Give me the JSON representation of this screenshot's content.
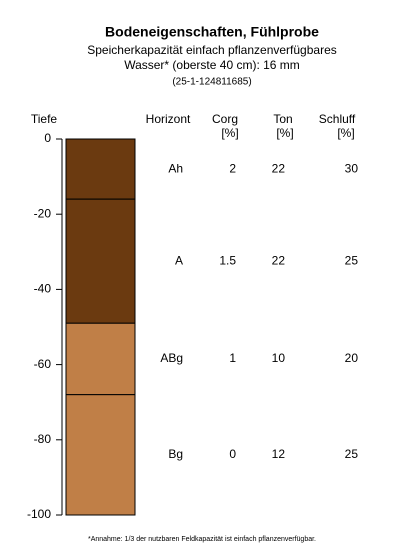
{
  "chart_data": {
    "type": "soil-profile",
    "title": "Bodeneigenschaften, Fühlprobe",
    "subtitle": [
      "Speicherkapazität einfach pflanzenverfügbares",
      "Wasser* (oberste 40 cm): 16 mm",
      "(25-1-124811685)"
    ],
    "y_label": "Tiefe",
    "horizon_header": "Horizont",
    "columns": [
      {
        "name": "Corg",
        "unit": "[%]"
      },
      {
        "name": "Ton",
        "unit": "[%]"
      },
      {
        "name": "Schluff",
        "unit": "[%]"
      }
    ],
    "ylim": [
      -100,
      0
    ],
    "yticks": [
      0,
      -20,
      -40,
      -60,
      -80,
      -100
    ],
    "horizons": [
      {
        "name": "Ah",
        "top": 0,
        "bottom": -16,
        "color": "#6b3a10",
        "values": [
          2,
          22,
          30
        ]
      },
      {
        "name": "A",
        "top": -16,
        "bottom": -49,
        "color": "#6b3a10",
        "values": [
          1.5,
          22,
          25
        ]
      },
      {
        "name": "ABg",
        "top": -49,
        "bottom": -68,
        "color": "#c07f47",
        "values": [
          1,
          10,
          20
        ]
      },
      {
        "name": "Bg",
        "top": -68,
        "bottom": -100,
        "color": "#c07f47",
        "values": [
          0,
          12,
          25
        ]
      }
    ],
    "footnote": "*Annahme: 1/3 der nutzbaren Feldkapazität ist einfach pflanzenverfügbar."
  }
}
